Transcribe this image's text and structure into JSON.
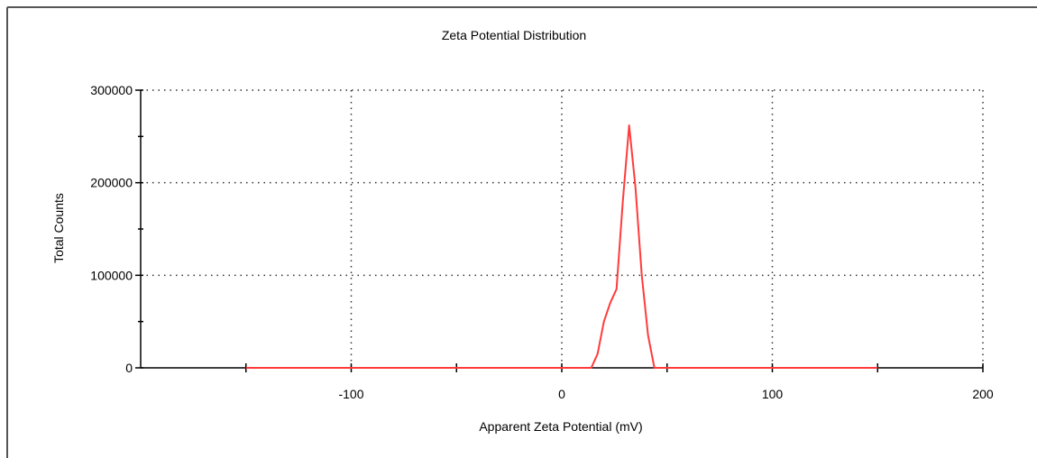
{
  "chart_data": {
    "type": "line",
    "title": "Zeta Potential Distribution",
    "xlabel": "Apparent Zeta Potential (mV)",
    "ylabel": "Total Counts",
    "xlim": [
      -200,
      200
    ],
    "ylim": [
      0,
      300000
    ],
    "x_ticks": [
      -100,
      0,
      100,
      200
    ],
    "y_ticks": [
      0,
      100000,
      200000,
      300000
    ],
    "x_tick_labels": [
      "-100",
      "0",
      "100",
      "200"
    ],
    "y_tick_labels": [
      "0",
      "100000",
      "200000",
      "300000"
    ],
    "grid": true,
    "series": [
      {
        "color": "#ff3b3b",
        "x": [
          -150,
          14,
          17,
          20,
          23,
          26,
          29,
          32,
          35,
          38,
          41,
          44,
          150
        ],
        "y": [
          0,
          0,
          15000,
          50000,
          70000,
          85000,
          180000,
          262000,
          195000,
          100000,
          35000,
          0,
          0
        ]
      }
    ]
  }
}
